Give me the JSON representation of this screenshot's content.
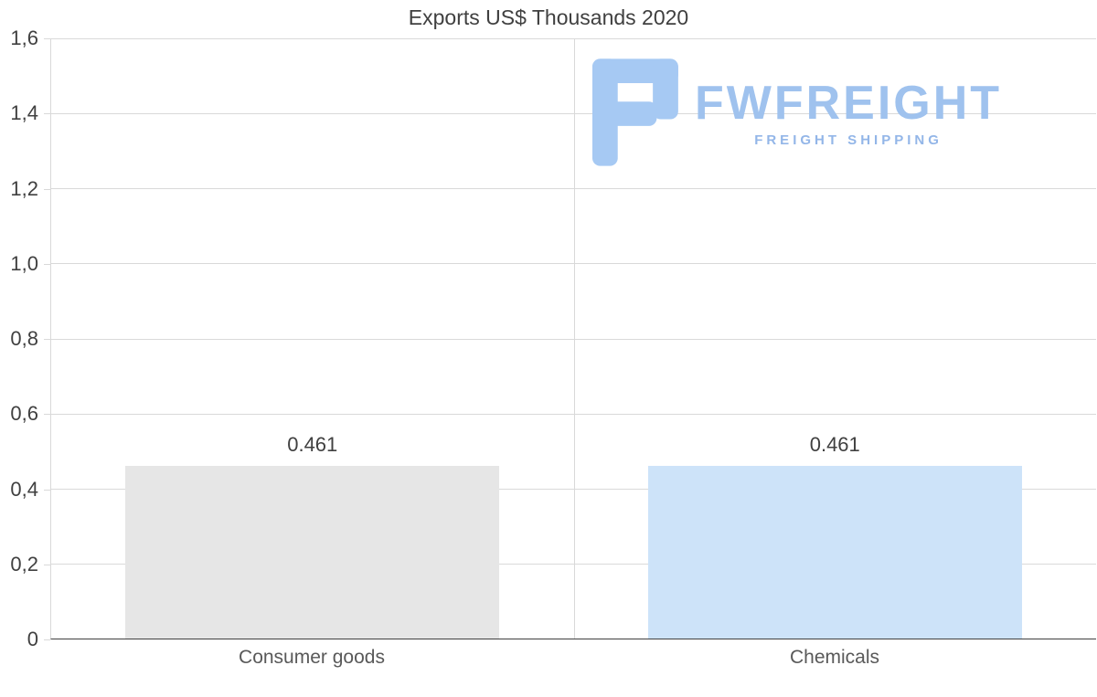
{
  "chart_data": {
    "type": "bar",
    "title": "Exports US$ Thousands 2020",
    "categories": [
      "Consumer goods",
      "Chemicals"
    ],
    "values": [
      0.461,
      0.461
    ],
    "value_labels": [
      "0.461",
      "0.461"
    ],
    "bar_colors": [
      "#e6e6e6",
      "#cde3f9"
    ],
    "ylim": [
      0,
      1.6
    ],
    "ytick_step": 0.2,
    "ytick_labels": [
      "0",
      "0,2",
      "0,4",
      "0,6",
      "0,8",
      "1,0",
      "1,2",
      "1,4",
      "1,6"
    ],
    "xlabel": "",
    "ylabel": "",
    "grid": true,
    "legend": "none"
  },
  "watermark": {
    "brand": "FWFREIGHT",
    "tagline": "FREIGHT SHIPPING"
  },
  "colors": {
    "bar_consumer_goods": "#e6e6e6",
    "bar_chemicals": "#cde3f9",
    "gridline": "#d9d9d9",
    "axis_line": "#404040",
    "title_text": "#404040",
    "tick_label_text": "#404040",
    "category_label_text": "#595959",
    "watermark_icon_blue": "#a6c9f3",
    "watermark_brand_blue": "#9fc2ee",
    "watermark_tagline_blue": "#93b6e8"
  }
}
